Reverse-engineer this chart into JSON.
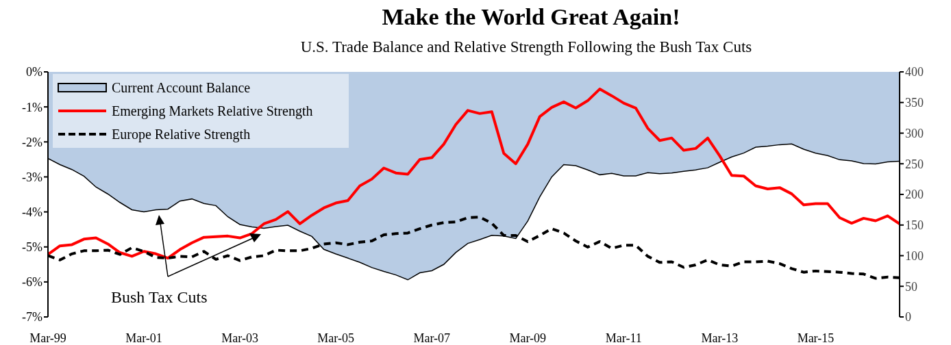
{
  "chart_data": {
    "type": "line",
    "title": "Make the World Great Again!",
    "subtitle": "U.S. Trade Balance and Relative Strength Following the Bush Tax Cuts",
    "x": [
      "1999-03",
      "1999-06",
      "1999-09",
      "1999-12",
      "2000-03",
      "2000-06",
      "2000-09",
      "2000-12",
      "2001-03",
      "2001-06",
      "2001-09",
      "2001-12",
      "2002-03",
      "2002-06",
      "2002-09",
      "2002-12",
      "2003-03",
      "2003-06",
      "2003-09",
      "2003-12",
      "2004-03",
      "2004-06",
      "2004-09",
      "2004-12",
      "2005-03",
      "2005-06",
      "2005-09",
      "2005-12",
      "2006-03",
      "2006-06",
      "2006-09",
      "2006-12",
      "2007-03",
      "2007-06",
      "2007-09",
      "2007-12",
      "2008-03",
      "2008-06",
      "2008-09",
      "2008-12",
      "2009-03",
      "2009-06",
      "2009-09",
      "2009-12",
      "2010-03",
      "2010-06",
      "2010-09",
      "2010-12",
      "2011-03",
      "2011-06",
      "2011-09",
      "2011-12",
      "2012-03",
      "2012-06",
      "2012-09",
      "2012-12",
      "2013-03",
      "2013-06",
      "2013-09",
      "2013-12",
      "2014-03",
      "2014-06",
      "2014-09",
      "2014-12",
      "2015-03",
      "2015-06",
      "2015-09",
      "2015-12",
      "2016-03",
      "2016-06",
      "2016-09",
      "2016-12"
    ],
    "series": [
      {
        "name": "Current Account Balance",
        "type": "area",
        "color": "#b8cce4",
        "values": [
          -2.47,
          -2.65,
          -2.79,
          -2.98,
          -3.29,
          -3.49,
          -3.73,
          -3.94,
          -4.0,
          -3.94,
          -3.92,
          -3.69,
          -3.63,
          -3.76,
          -3.82,
          -4.14,
          -4.36,
          -4.43,
          -4.47,
          -4.42,
          -4.38,
          -4.55,
          -4.7,
          -5.07,
          -5.2,
          -5.32,
          -5.44,
          -5.59,
          -5.7,
          -5.8,
          -5.94,
          -5.74,
          -5.68,
          -5.5,
          -5.16,
          -4.9,
          -4.79,
          -4.67,
          -4.69,
          -4.76,
          -4.26,
          -3.57,
          -3.0,
          -2.65,
          -2.68,
          -2.8,
          -2.94,
          -2.9,
          -2.97,
          -2.97,
          -2.88,
          -2.91,
          -2.89,
          -2.84,
          -2.8,
          -2.74,
          -2.58,
          -2.43,
          -2.32,
          -2.15,
          -2.12,
          -2.08,
          -2.06,
          -2.21,
          -2.32,
          -2.39,
          -2.51,
          -2.54,
          -2.62,
          -2.63,
          -2.57,
          -2.55
        ]
      },
      {
        "name": "Emerging Markets Relative Strength",
        "axis": "y2",
        "color": "#ff0000",
        "line_style": "solid",
        "values": [
          102,
          116,
          118,
          127,
          129,
          119,
          105,
          99,
          107,
          103,
          96,
          110,
          121,
          130,
          131,
          132,
          129,
          136,
          152,
          159,
          172,
          152,
          166,
          178,
          186,
          190,
          214,
          225,
          243,
          235,
          233,
          257,
          260,
          282,
          314,
          337,
          332,
          335,
          267,
          250,
          282,
          327,
          342,
          351,
          341,
          353,
          372,
          361,
          349,
          341,
          308,
          288,
          292,
          272,
          275,
          292,
          263,
          231,
          230,
          214,
          209,
          211,
          201,
          183,
          185,
          185,
          162,
          153,
          161,
          157,
          165,
          152
        ]
      },
      {
        "name": "Europe Relative Strength",
        "axis": "y2",
        "color": "#000000",
        "line_style": "dashed",
        "values": [
          100,
          93,
          103,
          108,
          108,
          109,
          102,
          113,
          107,
          97,
          96,
          99,
          98,
          107,
          94,
          100,
          92,
          98,
          100,
          109,
          108,
          108,
          112,
          119,
          121,
          118,
          122,
          124,
          134,
          136,
          137,
          144,
          150,
          154,
          155,
          162,
          163,
          153,
          133,
          133,
          123,
          133,
          144,
          137,
          124,
          114,
          123,
          112,
          117,
          117,
          99,
          89,
          90,
          81,
          85,
          93,
          85,
          83,
          90,
          90,
          91,
          87,
          79,
          73,
          75,
          74,
          73,
          71,
          70,
          63,
          65,
          64
        ]
      }
    ],
    "xlim": [
      "1999-03",
      "2016-12"
    ],
    "xticks": [
      {
        "value": "1999-03",
        "label": "Mar-99"
      },
      {
        "value": "2001-03",
        "label": "Mar-01"
      },
      {
        "value": "2003-03",
        "label": "Mar-03"
      },
      {
        "value": "2005-03",
        "label": "Mar-05"
      },
      {
        "value": "2007-03",
        "label": "Mar-07"
      },
      {
        "value": "2009-03",
        "label": "Mar-09"
      },
      {
        "value": "2011-03",
        "label": "Mar-11"
      },
      {
        "value": "2013-03",
        "label": "Mar-13"
      },
      {
        "value": "2015-03",
        "label": "Mar-15"
      }
    ],
    "ylim": [
      -7,
      0
    ],
    "yticks": [
      {
        "value": -7,
        "label": "-7%"
      },
      {
        "value": -6,
        "label": "-6%"
      },
      {
        "value": -5,
        "label": "-5%"
      },
      {
        "value": -4,
        "label": "-4%"
      },
      {
        "value": -3,
        "label": "-3%"
      },
      {
        "value": -2,
        "label": "-2%"
      },
      {
        "value": -1,
        "label": "-1%"
      },
      {
        "value": 0,
        "label": "0%"
      }
    ],
    "y2lim": [
      0,
      400
    ],
    "y2ticks": [
      0,
      50,
      100,
      150,
      200,
      250,
      300,
      350,
      400
    ],
    "grid": false,
    "legend": "top left",
    "marker": "none",
    "annotations": [
      "Bush Tax Cuts"
    ]
  }
}
